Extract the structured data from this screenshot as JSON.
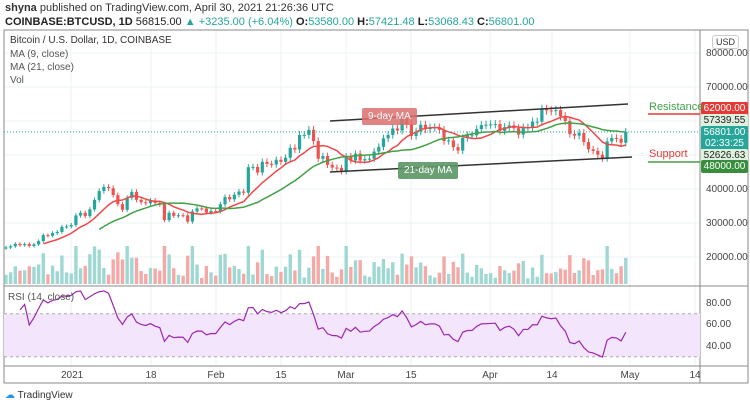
{
  "header": {
    "publisher": "shyna",
    "published_text": "published on TradingView.com, April 30, 2021 21:26:36 UTC",
    "symbol": "COINBASE:BTCUSD, 1D",
    "last": "56815.00",
    "change": "+3235.00 (+6.04%)",
    "open": "53580.00",
    "high": "57421.48",
    "low": "53068.43",
    "close": "56801.00"
  },
  "legend": {
    "title": "Bitcoin / U.S. Dollar, 1D, COINBASE",
    "ma9": "MA (9, close)",
    "ma21": "MA (21, close)",
    "vol": "Vol",
    "rsi": "RSI (14, close)"
  },
  "colors": {
    "up": "#26a69a",
    "down": "#ef5350",
    "ma9": "#f04848",
    "ma21": "#43a047",
    "rsi": "#9c27b0",
    "rsi_band": "#f3e5fc"
  },
  "chart_data": {
    "type": "candlestick",
    "start_date": "2020-12-18",
    "end_date": "2021-04-30",
    "closes": [
      22800,
      23150,
      23860,
      23480,
      23820,
      23250,
      23720,
      24680,
      26440,
      26250,
      27040,
      27360,
      28880,
      28990,
      29410,
      32200,
      33000,
      32020,
      34000,
      36800,
      39400,
      40600,
      40250,
      38200,
      35550,
      33900,
      37400,
      39150,
      36800,
      36100,
      35800,
      36630,
      35900,
      35500,
      30850,
      33000,
      32100,
      32280,
      32250,
      30400,
      33400,
      34300,
      34270,
      33110,
      33540,
      33500,
      35510,
      37660,
      36960,
      38300,
      39250,
      38900,
      46400,
      46500,
      44850,
      48000,
      47400,
      47200,
      48600,
      48000,
      49200,
      52100,
      51600,
      55900,
      55900,
      57400,
      54100,
      48900,
      49700,
      47100,
      46300,
      46200,
      45200,
      49600,
      48400,
      50400,
      48400,
      48800,
      48900,
      51000,
      52400,
      54900,
      55900,
      57800,
      57200,
      61200,
      59000,
      55600,
      56900,
      58900,
      57600,
      58100,
      58100,
      57400,
      54100,
      54300,
      52300,
      51300,
      55000,
      55800,
      55800,
      57600,
      58800,
      58900,
      59000,
      59100,
      57100,
      58200,
      58700,
      57900,
      56000,
      58100,
      58100,
      59800,
      59800,
      63500,
      63100,
      62900,
      63200,
      61400,
      60000,
      56200,
      55700,
      56500,
      53800,
      51700,
      51200,
      50100,
      49000,
      54000,
      55000,
      54800,
      53600,
      56800
    ],
    "price_axis": {
      "currency": "USD",
      "ticks": [
        "80000.00",
        "70000.00",
        "40000.00",
        "30000.00",
        "20000.00"
      ],
      "range": [
        15000,
        85000
      ]
    },
    "rsi_axis": {
      "ticks": [
        "80.00",
        "60.00",
        "40.00"
      ],
      "band": [
        30,
        70
      ]
    },
    "x_ticks": [
      "2021",
      "18",
      "Feb",
      "15",
      "Mar",
      "15",
      "Apr",
      "14",
      "May",
      "14"
    ],
    "price_labels": {
      "resistance": "62000.00",
      "ma9": "57339.55",
      "current": "56801.00",
      "countdown": "02:33:25",
      "ma21": "52626.63",
      "support": "48000.00"
    },
    "annotations": {
      "resistance": "Resistance",
      "support": "Support",
      "ma9": "9-day MA",
      "ma21": "21-day MA"
    }
  },
  "footer": {
    "brand": "TradingView"
  }
}
